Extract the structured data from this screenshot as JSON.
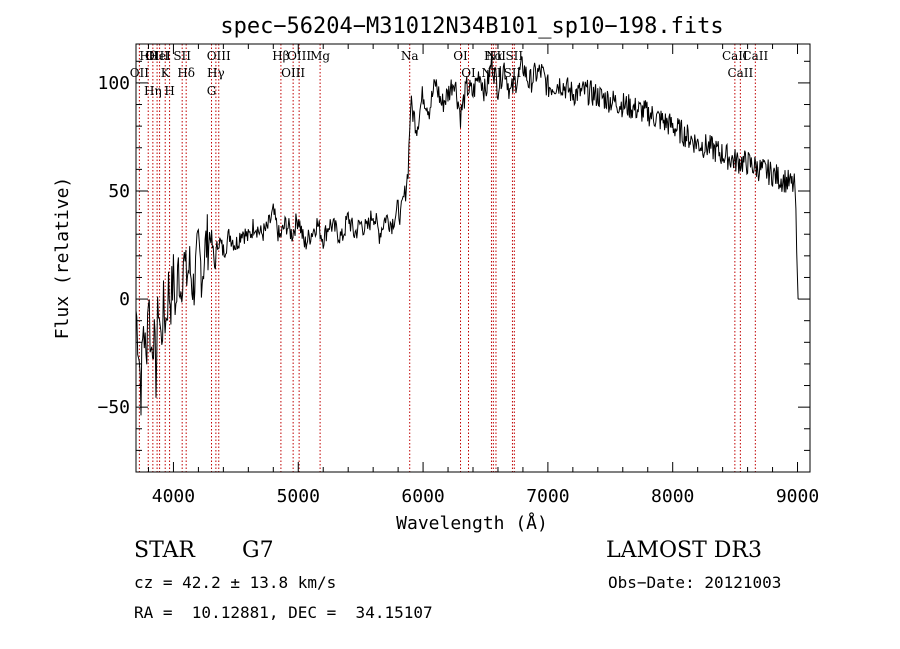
{
  "chart_data": {
    "type": "line",
    "title": "spec−56204−M31012N34B101_sp10−198.fits",
    "xlabel": "Wavelength (Å)",
    "ylabel": "Flux (relative)",
    "xlim": [
      3700,
      9100
    ],
    "ylim": [
      -80,
      118
    ],
    "xticks": [
      4000,
      5000,
      6000,
      7000,
      8000,
      9000
    ],
    "yticks": [
      -50,
      0,
      50,
      100
    ],
    "ytick_labels": [
      "−50",
      "0",
      "50",
      "100"
    ],
    "series": [
      {
        "name": "flux",
        "x": [
          3700,
          3720,
          3740,
          3760,
          3780,
          3800,
          3820,
          3840,
          3860,
          3880,
          3900,
          3920,
          3940,
          3960,
          3980,
          4000,
          4020,
          4040,
          4060,
          4080,
          4100,
          4130,
          4160,
          4200,
          4230,
          4260,
          4300,
          4330,
          4360,
          4400,
          4450,
          4500,
          4550,
          4600,
          4650,
          4700,
          4750,
          4800,
          4850,
          4900,
          4950,
          5000,
          5050,
          5100,
          5150,
          5200,
          5250,
          5300,
          5350,
          5400,
          5450,
          5500,
          5550,
          5600,
          5650,
          5700,
          5750,
          5800,
          5820,
          5840,
          5860,
          5880,
          5900,
          5950,
          6000,
          6050,
          6100,
          6150,
          6200,
          6250,
          6300,
          6350,
          6400,
          6450,
          6500,
          6550,
          6600,
          6650,
          6700,
          6750,
          6800,
          6850,
          6900,
          6950,
          7000,
          7100,
          7200,
          7300,
          7400,
          7500,
          7600,
          7700,
          7800,
          7900,
          8000,
          8100,
          8200,
          8300,
          8400,
          8500,
          8600,
          8700,
          8800,
          8850,
          8900,
          8950,
          8980,
          9000,
          9005
        ],
        "values": [
          -5,
          -20,
          -42,
          -10,
          -30,
          5,
          -25,
          -15,
          -35,
          0,
          -20,
          -5,
          -10,
          5,
          0,
          10,
          -5,
          15,
          5,
          20,
          10,
          15,
          5,
          22,
          12,
          25,
          30,
          15,
          28,
          22,
          30,
          25,
          32,
          28,
          35,
          30,
          32,
          40,
          28,
          35,
          30,
          38,
          25,
          30,
          35,
          28,
          35,
          32,
          28,
          38,
          30,
          35,
          32,
          40,
          30,
          38,
          35,
          42,
          38,
          45,
          50,
          60,
          90,
          80,
          95,
          88,
          100,
          90,
          95,
          102,
          85,
          98,
          95,
          105,
          95,
          110,
          98,
          108,
          95,
          102,
          108,
          100,
          104,
          105,
          98,
          100,
          95,
          96,
          94,
          92,
          90,
          88,
          86,
          83,
          80,
          76,
          72,
          70,
          67,
          64,
          63,
          60,
          58,
          56,
          55,
          53,
          52,
          5,
          0
        ]
      }
    ],
    "lines": [
      {
        "label": "Hθ",
        "x": 3798
      },
      {
        "label": "OII",
        "x": 3727
      },
      {
        "label": "OIII",
        "x": 3869
      },
      {
        "label": "Hη",
        "x": 3835
      },
      {
        "label": "K",
        "x": 3934
      },
      {
        "label": "H",
        "x": 3969
      },
      {
        "label": "HeI",
        "x": 3889
      },
      {
        "label": "SII",
        "x": 4070
      },
      {
        "label": "Hδ",
        "x": 4102
      },
      {
        "label": "OIII",
        "x": 4363
      },
      {
        "label": "Hγ",
        "x": 4340
      },
      {
        "label": "G",
        "x": 4305
      },
      {
        "label": "Hβ",
        "x": 4861
      },
      {
        "label": "OIII",
        "x": 4959
      },
      {
        "label": "OIII",
        "x": 5007
      },
      {
        "label": "Mg",
        "x": 5175
      },
      {
        "label": "Na",
        "x": 5893
      },
      {
        "label": "OI",
        "x": 6300
      },
      {
        "label": "OI",
        "x": 6364
      },
      {
        "label": "Hα",
        "x": 6563
      },
      {
        "label": "NII",
        "x": 6548
      },
      {
        "label": "NII",
        "x": 6584
      },
      {
        "label": "SII",
        "x": 6716
      },
      {
        "label": "SII",
        "x": 6731
      },
      {
        "label": "CaII",
        "x": 8498
      },
      {
        "label": "CaII",
        "x": 8542
      },
      {
        "label": "CaII",
        "x": 8662
      }
    ]
  },
  "info": {
    "class": "STAR",
    "subclass": "G7",
    "survey": "LAMOST DR3",
    "cz": "cz = 42.2 ± 13.8 km/s",
    "obs_date": "Obs−Date: 20121003",
    "radec": "RA =  10.12881, DEC =  34.15107"
  },
  "colors": {
    "line": "#000000",
    "marker": "#c00000"
  }
}
